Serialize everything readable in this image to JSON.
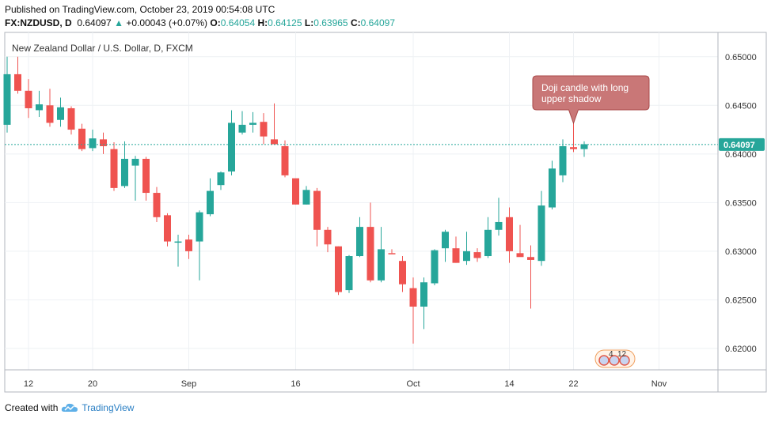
{
  "header": {
    "published": "Published on TradingView.com, October 23, 2019 00:54:08 UTC",
    "symbol": "FX:NZDUSD, D",
    "last": "0.64097",
    "change_arrow": "▲",
    "change": "+0.00043 (+0.07%)",
    "o_label": "O:",
    "o": "0.64054",
    "h_label": "H:",
    "h": "0.64125",
    "l_label": "L:",
    "l": "0.63965",
    "c_label": "C:",
    "c": "0.64097"
  },
  "footer": {
    "created": "Created with",
    "brand": "TradingView",
    "logo_icon": "tradingview-cloud-icon"
  },
  "colors": {
    "up": "#26a69a",
    "down": "#ef5350",
    "price_line": "#26a69a",
    "callout": "#c97777",
    "grid": "#eef1f4"
  },
  "chart_data": {
    "type": "candlestick",
    "title": "New Zealand Dollar / U.S. Dollar, D, FXCM",
    "ylim": [
      0.6178,
      0.6525
    ],
    "y_ticks": [
      "0.65000",
      "0.64500",
      "0.64000",
      "0.63500",
      "0.63000",
      "0.62500",
      "0.62000"
    ],
    "x_ticks": [
      {
        "label": "12",
        "idx": 2
      },
      {
        "label": "20",
        "idx": 8
      },
      {
        "label": "Sep",
        "idx": 17
      },
      {
        "label": "16",
        "idx": 27
      },
      {
        "label": "Oct",
        "idx": 38
      },
      {
        "label": "14",
        "idx": 47
      },
      {
        "label": "22",
        "idx": 53
      },
      {
        "label": "Nov",
        "idx": 61
      }
    ],
    "last_price": "0.64097",
    "last_value": 0.64097,
    "annotation": {
      "text": [
        "Doji candle with long",
        "upper shadow"
      ],
      "idx": 53
    },
    "event_badge": {
      "count_a": "4",
      "count_b": "12"
    },
    "candles": [
      {
        "o": 0.643,
        "h": 0.65,
        "l": 0.6422,
        "c": 0.6482
      },
      {
        "o": 0.6482,
        "h": 0.65,
        "l": 0.6462,
        "c": 0.6465
      },
      {
        "o": 0.6465,
        "h": 0.6477,
        "l": 0.6437,
        "c": 0.6447
      },
      {
        "o": 0.6445,
        "h": 0.6465,
        "l": 0.6438,
        "c": 0.6451
      },
      {
        "o": 0.645,
        "h": 0.6467,
        "l": 0.6428,
        "c": 0.6432
      },
      {
        "o": 0.6435,
        "h": 0.6458,
        "l": 0.6428,
        "c": 0.6448
      },
      {
        "o": 0.6447,
        "h": 0.6449,
        "l": 0.642,
        "c": 0.6425
      },
      {
        "o": 0.6426,
        "h": 0.6431,
        "l": 0.6403,
        "c": 0.6405
      },
      {
        "o": 0.6406,
        "h": 0.6425,
        "l": 0.6403,
        "c": 0.6416
      },
      {
        "o": 0.6415,
        "h": 0.6422,
        "l": 0.64,
        "c": 0.6408
      },
      {
        "o": 0.6405,
        "h": 0.6412,
        "l": 0.6362,
        "c": 0.6365
      },
      {
        "o": 0.6367,
        "h": 0.6413,
        "l": 0.6365,
        "c": 0.6395
      },
      {
        "o": 0.6388,
        "h": 0.6398,
        "l": 0.6352,
        "c": 0.6395
      },
      {
        "o": 0.6395,
        "h": 0.6397,
        "l": 0.6352,
        "c": 0.636
      },
      {
        "o": 0.636,
        "h": 0.6366,
        "l": 0.633,
        "c": 0.6335
      },
      {
        "o": 0.6337,
        "h": 0.6339,
        "l": 0.6305,
        "c": 0.631
      },
      {
        "o": 0.6309,
        "h": 0.6317,
        "l": 0.6284,
        "c": 0.631
      },
      {
        "o": 0.6312,
        "h": 0.6317,
        "l": 0.6292,
        "c": 0.63
      },
      {
        "o": 0.631,
        "h": 0.6342,
        "l": 0.627,
        "c": 0.634
      },
      {
        "o": 0.6338,
        "h": 0.6375,
        "l": 0.6336,
        "c": 0.6362
      },
      {
        "o": 0.6368,
        "h": 0.6382,
        "l": 0.6363,
        "c": 0.6381
      },
      {
        "o": 0.6382,
        "h": 0.6445,
        "l": 0.6378,
        "c": 0.6432
      },
      {
        "o": 0.6422,
        "h": 0.6444,
        "l": 0.642,
        "c": 0.643
      },
      {
        "o": 0.643,
        "h": 0.6443,
        "l": 0.6422,
        "c": 0.6432
      },
      {
        "o": 0.6433,
        "h": 0.6442,
        "l": 0.641,
        "c": 0.6418
      },
      {
        "o": 0.6415,
        "h": 0.6452,
        "l": 0.641,
        "c": 0.641
      },
      {
        "o": 0.6408,
        "h": 0.6414,
        "l": 0.6376,
        "c": 0.6378
      },
      {
        "o": 0.6375,
        "h": 0.6374,
        "l": 0.6348,
        "c": 0.6348
      },
      {
        "o": 0.6348,
        "h": 0.6367,
        "l": 0.6348,
        "c": 0.6363
      },
      {
        "o": 0.6362,
        "h": 0.6365,
        "l": 0.6305,
        "c": 0.6322
      },
      {
        "o": 0.6322,
        "h": 0.6325,
        "l": 0.6299,
        "c": 0.6307
      },
      {
        "o": 0.6305,
        "h": 0.6305,
        "l": 0.6255,
        "c": 0.6258
      },
      {
        "o": 0.626,
        "h": 0.6296,
        "l": 0.6257,
        "c": 0.6295
      },
      {
        "o": 0.6295,
        "h": 0.6335,
        "l": 0.6294,
        "c": 0.6325
      },
      {
        "o": 0.6325,
        "h": 0.635,
        "l": 0.6268,
        "c": 0.627
      },
      {
        "o": 0.627,
        "h": 0.6325,
        "l": 0.6268,
        "c": 0.6302
      },
      {
        "o": 0.6298,
        "h": 0.6302,
        "l": 0.6298,
        "c": 0.6297
      },
      {
        "o": 0.629,
        "h": 0.6295,
        "l": 0.6258,
        "c": 0.6266
      },
      {
        "o": 0.6262,
        "h": 0.6273,
        "l": 0.6205,
        "c": 0.6243
      },
      {
        "o": 0.6243,
        "h": 0.6273,
        "l": 0.622,
        "c": 0.6268
      },
      {
        "o": 0.6267,
        "h": 0.6302,
        "l": 0.6265,
        "c": 0.6301
      },
      {
        "o": 0.6303,
        "h": 0.6322,
        "l": 0.6289,
        "c": 0.632
      },
      {
        "o": 0.6303,
        "h": 0.6315,
        "l": 0.6288,
        "c": 0.6288
      },
      {
        "o": 0.629,
        "h": 0.632,
        "l": 0.6286,
        "c": 0.63
      },
      {
        "o": 0.6299,
        "h": 0.6303,
        "l": 0.6289,
        "c": 0.6293
      },
      {
        "o": 0.6295,
        "h": 0.6335,
        "l": 0.6293,
        "c": 0.6322
      },
      {
        "o": 0.6322,
        "h": 0.6355,
        "l": 0.6316,
        "c": 0.633
      },
      {
        "o": 0.6335,
        "h": 0.6345,
        "l": 0.6288,
        "c": 0.63
      },
      {
        "o": 0.6298,
        "h": 0.6327,
        "l": 0.6295,
        "c": 0.6294
      },
      {
        "o": 0.6294,
        "h": 0.6306,
        "l": 0.6241,
        "c": 0.6291
      },
      {
        "o": 0.629,
        "h": 0.6362,
        "l": 0.6285,
        "c": 0.6347
      },
      {
        "o": 0.6345,
        "h": 0.6393,
        "l": 0.6343,
        "c": 0.6385
      },
      {
        "o": 0.6378,
        "h": 0.6415,
        "l": 0.6371,
        "c": 0.6408
      },
      {
        "o": 0.6407,
        "h": 0.6438,
        "l": 0.6402,
        "c": 0.6405
      },
      {
        "o": 0.6405,
        "h": 0.6413,
        "l": 0.6397,
        "c": 0.641
      }
    ]
  }
}
